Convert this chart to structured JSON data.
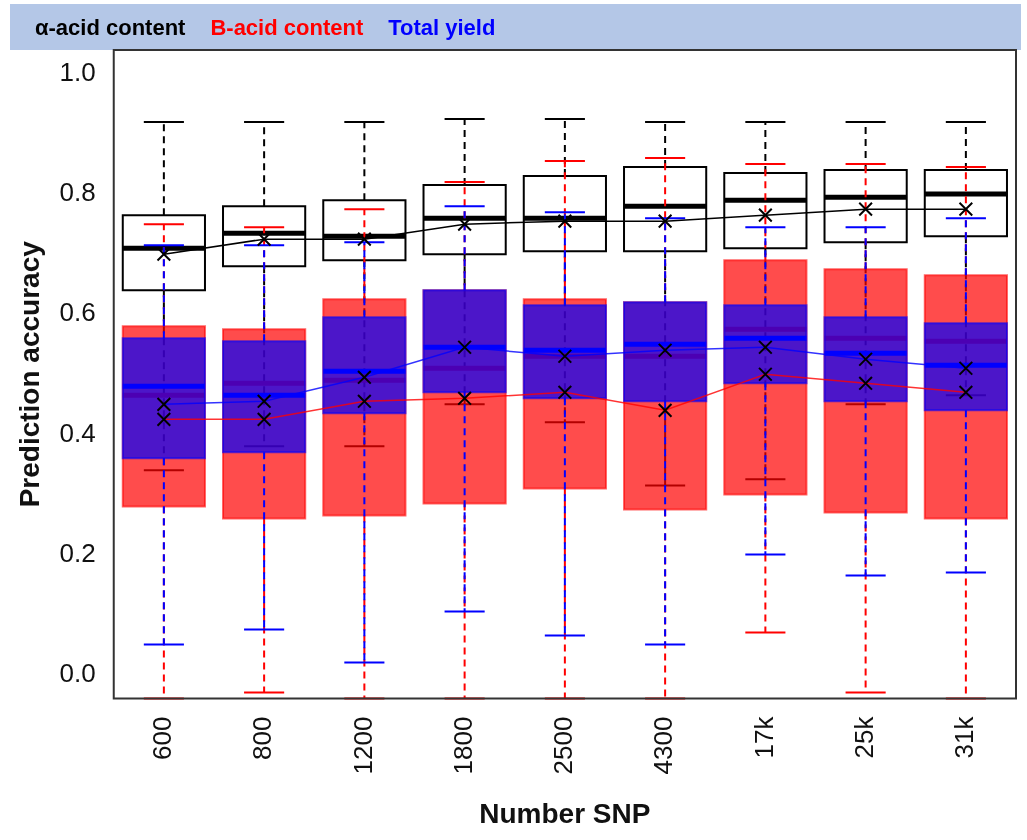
{
  "chart_data": {
    "type": "box",
    "xlabel": "Number SNP",
    "ylabel": "Prediction accuracy",
    "categories": [
      "600",
      "800",
      "1200",
      "1800",
      "2500",
      "4300",
      "17k",
      "25k",
      "31k"
    ],
    "ylim": [
      -0.04,
      1.04
    ],
    "yticks": [
      {
        "value": 0,
        "label": "0.0"
      },
      {
        "value": 0.2,
        "label": "0.2"
      },
      {
        "value": 0.4,
        "label": "0.4"
      },
      {
        "value": 0.6,
        "label": "0.6"
      },
      {
        "value": 0.8,
        "label": "0.8"
      },
      {
        "value": 1,
        "label": "1.0"
      }
    ],
    "legend": "top left",
    "marker": "cross",
    "grid": false,
    "series": [
      {
        "name": "α-acid content",
        "color": "#000000",
        "boxes": [
          {
            "low": 0.34,
            "q1": 0.64,
            "median": 0.71,
            "q3": 0.765,
            "high": 0.92
          },
          {
            "low": 0.38,
            "q1": 0.68,
            "median": 0.735,
            "q3": 0.78,
            "high": 0.92
          },
          {
            "low": 0.38,
            "q1": 0.69,
            "median": 0.73,
            "q3": 0.79,
            "high": 0.92
          },
          {
            "low": 0.45,
            "q1": 0.7,
            "median": 0.76,
            "q3": 0.815,
            "high": 0.925
          },
          {
            "low": 0.42,
            "q1": 0.705,
            "median": 0.76,
            "q3": 0.83,
            "high": 0.925
          },
          {
            "low": 0.315,
            "q1": 0.705,
            "median": 0.78,
            "q3": 0.845,
            "high": 0.92
          },
          {
            "low": 0.325,
            "q1": 0.71,
            "median": 0.79,
            "q3": 0.835,
            "high": 0.92
          },
          {
            "low": 0.45,
            "q1": 0.72,
            "median": 0.795,
            "q3": 0.84,
            "high": 0.92
          },
          {
            "low": 0.465,
            "q1": 0.73,
            "median": 0.8,
            "q3": 0.84,
            "high": 0.92
          }
        ]
      },
      {
        "name": "B-acid content",
        "color": "#ff0000",
        "boxes": [
          {
            "low": -0.04,
            "q1": 0.28,
            "median": 0.465,
            "q3": 0.58,
            "high": 0.75
          },
          {
            "low": -0.03,
            "q1": 0.26,
            "median": 0.485,
            "q3": 0.575,
            "high": 0.745
          },
          {
            "low": -0.04,
            "q1": 0.265,
            "median": 0.49,
            "q3": 0.625,
            "high": 0.775
          },
          {
            "low": -0.04,
            "q1": 0.285,
            "median": 0.51,
            "q3": 0.64,
            "high": 0.82
          },
          {
            "low": -0.04,
            "q1": 0.31,
            "median": 0.53,
            "q3": 0.625,
            "high": 0.855
          },
          {
            "low": -0.04,
            "q1": 0.275,
            "median": 0.53,
            "q3": 0.62,
            "high": 0.86
          },
          {
            "low": 0.07,
            "q1": 0.3,
            "median": 0.575,
            "q3": 0.69,
            "high": 0.85
          },
          {
            "low": -0.03,
            "q1": 0.27,
            "median": 0.56,
            "q3": 0.675,
            "high": 0.85
          },
          {
            "low": -0.04,
            "q1": 0.26,
            "median": 0.555,
            "q3": 0.665,
            "high": 0.845
          }
        ]
      },
      {
        "name": "Total yield",
        "color": "#0000ff",
        "boxes": [
          {
            "low": 0.05,
            "q1": 0.36,
            "median": 0.48,
            "q3": 0.56,
            "high": 0.715
          },
          {
            "low": 0.075,
            "q1": 0.37,
            "median": 0.465,
            "q3": 0.555,
            "high": 0.715
          },
          {
            "low": 0.02,
            "q1": 0.435,
            "median": 0.505,
            "q3": 0.595,
            "high": 0.72
          },
          {
            "low": 0.105,
            "q1": 0.47,
            "median": 0.545,
            "q3": 0.64,
            "high": 0.78
          },
          {
            "low": 0.065,
            "q1": 0.46,
            "median": 0.54,
            "q3": 0.615,
            "high": 0.77
          },
          {
            "low": 0.05,
            "q1": 0.455,
            "median": 0.55,
            "q3": 0.62,
            "high": 0.76
          },
          {
            "low": 0.2,
            "q1": 0.485,
            "median": 0.56,
            "q3": 0.615,
            "high": 0.745
          },
          {
            "low": 0.165,
            "q1": 0.455,
            "median": 0.535,
            "q3": 0.595,
            "high": 0.745
          },
          {
            "low": 0.17,
            "q1": 0.44,
            "median": 0.515,
            "q3": 0.585,
            "high": 0.76
          }
        ]
      },
      {
        "type": "line",
        "color": "#000000",
        "values": [
          0.7,
          0.725,
          0.725,
          0.75,
          0.755,
          0.755,
          0.765,
          0.775,
          0.775
        ]
      },
      {
        "type": "line",
        "color": "#ff0000",
        "values": [
          0.425,
          0.425,
          0.455,
          0.46,
          0.47,
          0.44,
          0.5,
          0.485,
          0.47
        ]
      },
      {
        "type": "line",
        "color": "#0000ff",
        "values": [
          0.45,
          0.455,
          0.495,
          0.545,
          0.53,
          0.54,
          0.545,
          0.525,
          0.51
        ]
      }
    ]
  }
}
